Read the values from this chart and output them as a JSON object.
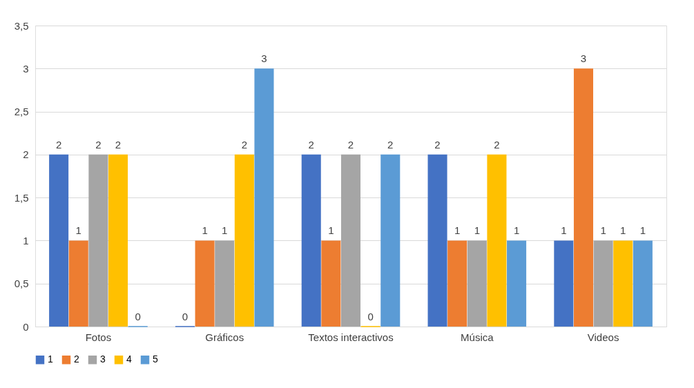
{
  "chart_data": {
    "type": "bar",
    "categories": [
      "Fotos",
      "Gráficos",
      "Textos interactivos",
      "Música",
      "Videos"
    ],
    "series": [
      {
        "name": "1",
        "color": "#4472c4",
        "values": [
          2,
          0,
          2,
          2,
          1
        ]
      },
      {
        "name": "2",
        "color": "#ed7d31",
        "values": [
          1,
          1,
          1,
          1,
          3
        ]
      },
      {
        "name": "3",
        "color": "#a5a5a5",
        "values": [
          2,
          1,
          2,
          1,
          1
        ]
      },
      {
        "name": "4",
        "color": "#ffc000",
        "values": [
          2,
          2,
          0,
          2,
          1
        ]
      },
      {
        "name": "5",
        "color": "#5b9bd5",
        "values": [
          0,
          3,
          2,
          1,
          1
        ]
      }
    ],
    "ylim": [
      0,
      3.5
    ],
    "yticks": [
      0,
      {
        "value": 0.5,
        "label": "0,5"
      },
      1,
      {
        "value": 1.5,
        "label": "1,5"
      },
      2,
      {
        "value": 2.5,
        "label": "2,5"
      },
      3,
      {
        "value": 3.5,
        "label": "3,5"
      }
    ],
    "grid": "y",
    "legend": "bottom",
    "data_labels": true
  }
}
